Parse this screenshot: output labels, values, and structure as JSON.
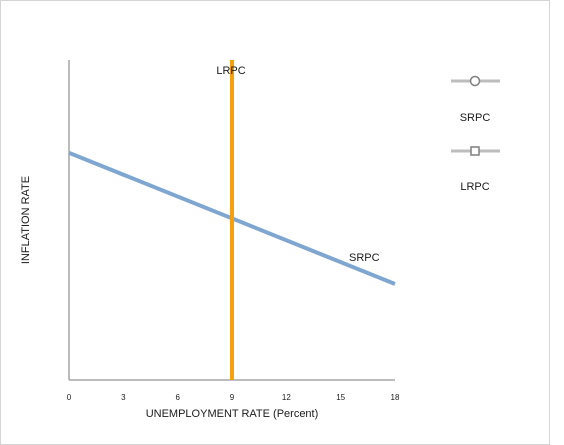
{
  "chart_data": {
    "type": "line",
    "xlabel": "UNEMPLOYMENT RATE (Percent)",
    "ylabel": "INFLATION RATE",
    "xlim": [
      0,
      18
    ],
    "ylim": [
      0,
      10
    ],
    "x_ticks": [
      "0",
      "3",
      "6",
      "9",
      "12",
      "15",
      "18"
    ],
    "y_ticks": [],
    "grid": false,
    "legend_placement": "right",
    "series": [
      {
        "name": "SRPC",
        "label": "SRPC",
        "color": "#7ea6d0",
        "marker": "circle",
        "points": [
          [
            0,
            7.1
          ],
          [
            18,
            3.0
          ]
        ]
      },
      {
        "name": "LRPC",
        "label": "LRPC",
        "color": "#f5a00f",
        "marker": "square",
        "points": [
          [
            9,
            0
          ],
          [
            9,
            10
          ]
        ]
      }
    ],
    "legend": [
      {
        "label": "SRPC",
        "marker": "circle"
      },
      {
        "label": "LRPC",
        "marker": "square"
      }
    ]
  }
}
